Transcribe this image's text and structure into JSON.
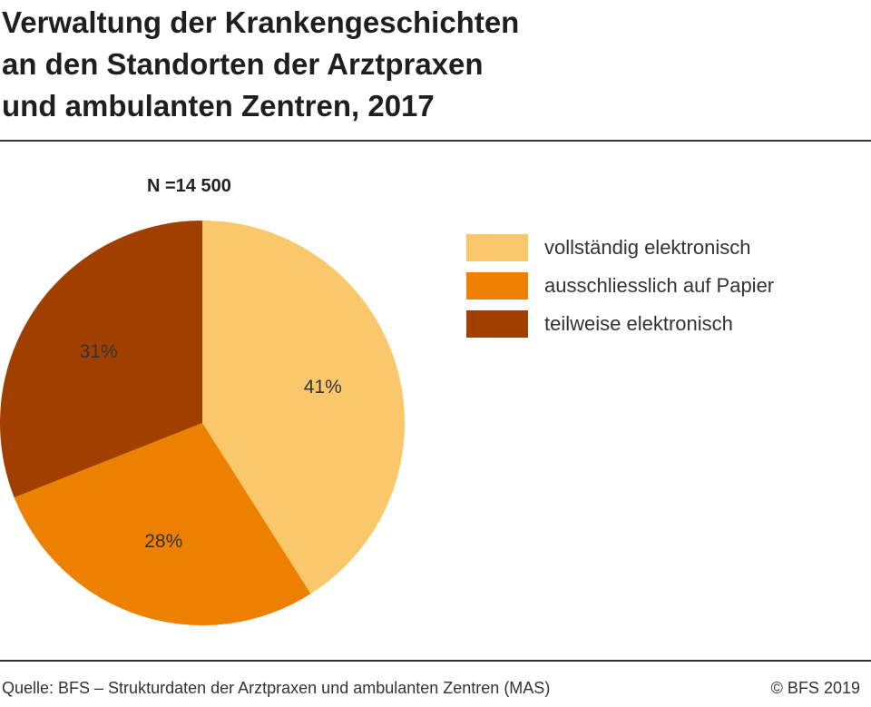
{
  "title_lines": [
    "Verwaltung der Krankengeschichten",
    "an den Standorten der Arztpraxen",
    "und ambulanten Zentren, 2017"
  ],
  "n_label": "N =14 500",
  "chart_data": {
    "type": "pie",
    "title": "Verwaltung der Krankengeschichten an den Standorten der Arztpraxen und ambulanten Zentren, 2017",
    "categories": [
      "vollständig elektronisch",
      "ausschliesslich auf Papier",
      "teilweise elektronisch"
    ],
    "values": [
      41,
      28,
      31
    ],
    "value_labels": [
      "41%",
      "28%",
      "31%"
    ],
    "colors": [
      "#FBC76B",
      "#EE8000",
      "#A03F00"
    ],
    "label_color": "#333333",
    "legend_position": "right"
  },
  "footer": {
    "source": "Quelle: BFS – Strukturdaten der Arztpraxen und ambulanten Zentren (MAS)",
    "copyright": "© BFS 2019"
  }
}
